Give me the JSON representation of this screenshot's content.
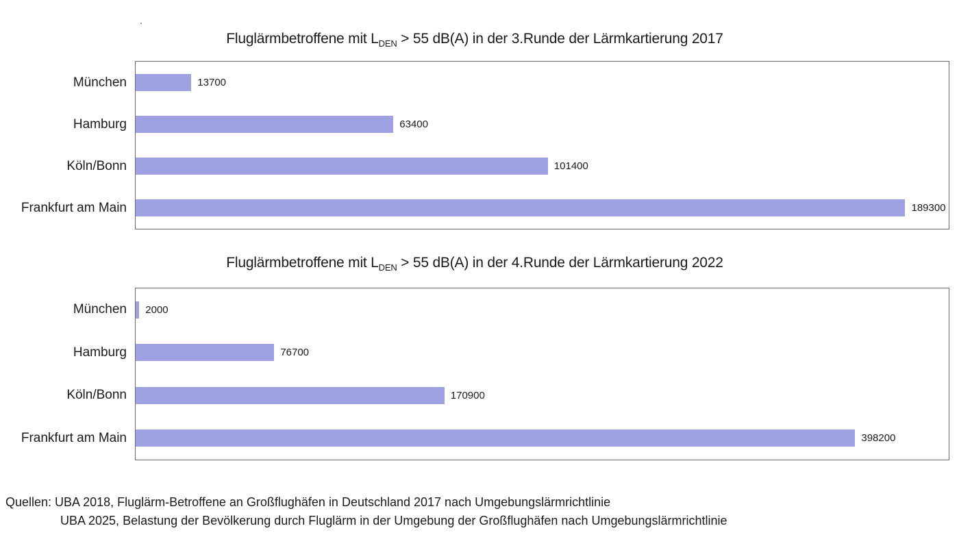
{
  "page": {
    "background": "#ffffff",
    "stray_mark": "."
  },
  "styles": {
    "bar_color": "#9ea1e2",
    "plot_border_color": "#6a6a6a",
    "text_color": "#1a1a1a"
  },
  "chart_data": [
    {
      "type": "bar",
      "orientation": "horizontal",
      "title": "Fluglärmbetroffene mit LDEN > 55 dB(A) in der 3.Runde der Lärmkartierung 2017",
      "title_parts": {
        "prefix": "Fluglärmbetroffene mit L",
        "sub": "DEN",
        "suffix": " > 55 dB(A) in der 3.Runde der Lärmkartierung 2017"
      },
      "categories": [
        "München",
        "Hamburg",
        "Köln/Bonn",
        "Frankfurt am Main"
      ],
      "values": [
        13700,
        63400,
        101400,
        189300
      ],
      "xlim": [
        0,
        200000
      ],
      "bar_color": "#9ea1e2",
      "grid": false,
      "legend": false,
      "data_labels": true
    },
    {
      "type": "bar",
      "orientation": "horizontal",
      "title": "Fluglärmbetroffene mit LDEN > 55 dB(A) in der 4.Runde der Lärmkartierung 2022",
      "title_parts": {
        "prefix": "Fluglärmbetroffene mit L",
        "sub": "DEN",
        "suffix": " > 55 dB(A) in der 4.Runde der Lärmkartierung 2022"
      },
      "categories": [
        "München",
        "Hamburg",
        "Köln/Bonn",
        "Frankfurt am Main"
      ],
      "values": [
        2000,
        76700,
        170900,
        398200
      ],
      "xlim": [
        0,
        450000
      ],
      "bar_color": "#9ea1e2",
      "grid": false,
      "legend": false,
      "data_labels": true
    }
  ],
  "footer": {
    "line1": "Quellen: UBA 2018, Fluglärm-Betroffene an Großflughäfen in Deutschland 2017 nach Umgebungslärmrichtlinie",
    "line2": "UBA 2025, Belastung der Bevölkerung durch Fluglärm in der Umgebung der Großflughäfen nach Umgebungslärmrichtlinie"
  }
}
